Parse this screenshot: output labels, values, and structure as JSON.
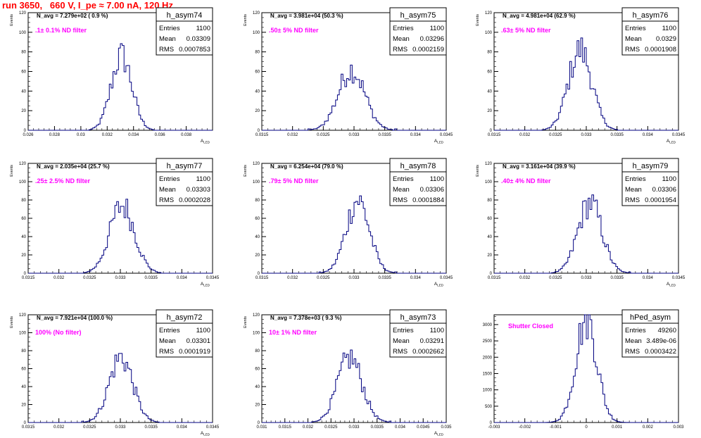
{
  "run_title": "run 3650,   660 V, I_pe ≈ 7.00 nA, 120 Hz",
  "colors": {
    "run_title": "#ff0000",
    "histogram": "#000080",
    "annotation": "#ff00ff",
    "frame": "#000000"
  },
  "chart_data": [
    {
      "type": "histogram",
      "name": "h_asym74",
      "stats": {
        "entries_label": "Entries",
        "entries": "1100",
        "mean_label": "Mean",
        "mean": "0.03309",
        "rms_label": "RMS",
        "rms": "0.0007853"
      },
      "navg_text": "N_avg = 7.279e+02 ( 0.9 %)",
      "annotation": ".1± 0.1% ND filter",
      "ylabel": "Events",
      "xlabel": "A_LED",
      "xlim": [
        0.026,
        0.04
      ],
      "ylim": [
        0,
        120
      ],
      "yticks": [
        "0",
        "20",
        "40",
        "60",
        "80",
        "100",
        "120"
      ],
      "xticks": [
        0.026,
        0.028,
        0.03,
        0.032,
        0.034,
        0.036,
        0.038
      ],
      "xtick_labels": [
        "0.026",
        "0.028",
        "0.03",
        "0.032",
        "0.034",
        "0.036",
        "0.038"
      ],
      "mean": 0.03309,
      "rms": 0.0007853,
      "peak": 76,
      "entries": 1100
    },
    {
      "type": "histogram",
      "name": "h_asym75",
      "stats": {
        "entries_label": "Entries",
        "entries": "1100",
        "mean_label": "Mean",
        "mean": "0.03296",
        "rms_label": "RMS",
        "rms": "0.0002159"
      },
      "navg_text": "N_avg = 3.981e+04 (50.3 %)",
      "annotation": ".50± 5% ND filter",
      "ylabel": "Events",
      "xlabel": "A_LED",
      "xlim": [
        0.0315,
        0.0345
      ],
      "ylim": [
        0,
        120
      ],
      "yticks": [
        "0",
        "20",
        "40",
        "60",
        "80",
        "100",
        "120"
      ],
      "xticks": [
        0.0315,
        0.032,
        0.0325,
        0.033,
        0.0335,
        0.034,
        0.0345
      ],
      "xtick_labels": [
        "0.0315",
        "0.032",
        "0.0325",
        "0.033",
        "0.0335",
        "0.034",
        "0.0345"
      ],
      "mean": 0.03296,
      "rms": 0.0002159,
      "peak": 62,
      "entries": 1100
    },
    {
      "type": "histogram",
      "name": "h_asym76",
      "stats": {
        "entries_label": "Entries",
        "entries": "1100",
        "mean_label": "Mean",
        "mean": "0.0329",
        "rms_label": "RMS",
        "rms": "0.0001908"
      },
      "navg_text": "N_avg = 4.981e+04 (62.9 %)",
      "annotation": ".63± 5% ND filter",
      "ylabel": "Events",
      "xlabel": "A_LED",
      "xlim": [
        0.0315,
        0.0345
      ],
      "ylim": [
        0,
        120
      ],
      "yticks": [
        "0",
        "20",
        "40",
        "60",
        "80",
        "100",
        "120"
      ],
      "xticks": [
        0.0315,
        0.032,
        0.0325,
        0.033,
        0.0335,
        0.034,
        0.0345
      ],
      "xtick_labels": [
        "0.0315",
        "0.032",
        "0.0325",
        "0.033",
        "0.0335",
        "0.034",
        "0.0345"
      ],
      "mean": 0.0329,
      "rms": 0.0001908,
      "peak": 82,
      "entries": 1100
    },
    {
      "type": "histogram",
      "name": "h_asym77",
      "stats": {
        "entries_label": "Entries",
        "entries": "1100",
        "mean_label": "Mean",
        "mean": "0.03303",
        "rms_label": "RMS",
        "rms": "0.0002028"
      },
      "navg_text": "N_avg = 2.035e+04 (25.7 %)",
      "annotation": ".25± 2.5% ND filter",
      "ylabel": "Events",
      "xlabel": "A_LED",
      "xlim": [
        0.0315,
        0.0345
      ],
      "ylim": [
        0,
        120
      ],
      "yticks": [
        "0",
        "20",
        "40",
        "60",
        "80",
        "100",
        "120"
      ],
      "xticks": [
        0.0315,
        0.032,
        0.0325,
        0.033,
        0.0335,
        0.034,
        0.0345
      ],
      "xtick_labels": [
        "0.0315",
        "0.032",
        "0.0325",
        "0.033",
        "0.0335",
        "0.034",
        "0.0345"
      ],
      "mean": 0.03303,
      "rms": 0.0002028,
      "peak": 74,
      "entries": 1100
    },
    {
      "type": "histogram",
      "name": "h_asym78",
      "stats": {
        "entries_label": "Entries",
        "entries": "1100",
        "mean_label": "Mean",
        "mean": "0.03306",
        "rms_label": "RMS",
        "rms": "0.0001884"
      },
      "navg_text": "N_avg = 6.254e+04 (79.0 %)",
      "annotation": ".79± 5% ND filter",
      "ylabel": "Events",
      "xlabel": "A_LED",
      "xlim": [
        0.0315,
        0.0345
      ],
      "ylim": [
        0,
        120
      ],
      "yticks": [
        "0",
        "20",
        "40",
        "60",
        "80",
        "100",
        "120"
      ],
      "xticks": [
        0.0315,
        0.032,
        0.0325,
        0.033,
        0.0335,
        0.034,
        0.0345
      ],
      "xtick_labels": [
        "0.0315",
        "0.032",
        "0.0325",
        "0.033",
        "0.0335",
        "0.034",
        "0.0345"
      ],
      "mean": 0.03306,
      "rms": 0.0001884,
      "peak": 80,
      "entries": 1100
    },
    {
      "type": "histogram",
      "name": "h_asym79",
      "stats": {
        "entries_label": "Entries",
        "entries": "1100",
        "mean_label": "Mean",
        "mean": "0.03306",
        "rms_label": "RMS",
        "rms": "0.0001954"
      },
      "navg_text": "N_avg = 3.161e+04 (39.9 %)",
      "annotation": ".40± 4% ND filter",
      "ylabel": "Events",
      "xlabel": "A_LED",
      "xlim": [
        0.0315,
        0.0345
      ],
      "ylim": [
        0,
        120
      ],
      "yticks": [
        "0",
        "20",
        "40",
        "60",
        "80",
        "100",
        "120"
      ],
      "xticks": [
        0.0315,
        0.032,
        0.0325,
        0.033,
        0.0335,
        0.034,
        0.0345
      ],
      "xtick_labels": [
        "0.0315",
        "0.032",
        "0.0325",
        "0.033",
        "0.0335",
        "0.034",
        "0.0345"
      ],
      "mean": 0.03306,
      "rms": 0.0001954,
      "peak": 77,
      "entries": 1100
    },
    {
      "type": "histogram",
      "name": "h_asym72",
      "stats": {
        "entries_label": "Entries",
        "entries": "1100",
        "mean_label": "Mean",
        "mean": "0.03301",
        "rms_label": "RMS",
        "rms": "0.0001919"
      },
      "navg_text": "N_avg = 7.921e+04 (100.0 %)",
      "annotation": "100% (No filter)",
      "ylabel": "Events",
      "xlabel": "A_LED",
      "xlim": [
        0.0315,
        0.0345
      ],
      "ylim": [
        0,
        120
      ],
      "yticks": [
        "0",
        "20",
        "40",
        "60",
        "80",
        "100",
        "120"
      ],
      "xticks": [
        0.0315,
        0.032,
        0.0325,
        0.033,
        0.0335,
        0.034,
        0.0345
      ],
      "xtick_labels": [
        "0.0315",
        "0.032",
        "0.0325",
        "0.033",
        "0.0335",
        "0.034",
        "0.0345"
      ],
      "mean": 0.03301,
      "rms": 0.0001919,
      "peak": 73,
      "entries": 1100
    },
    {
      "type": "histogram",
      "name": "h_asym73",
      "stats": {
        "entries_label": "Entries",
        "entries": "1100",
        "mean_label": "Mean",
        "mean": "0.03291",
        "rms_label": "RMS",
        "rms": "0.0002662"
      },
      "navg_text": "N_avg = 7.378e+03 ( 9.3 %)",
      "annotation": "10± 1% ND filter",
      "ylabel": "Events",
      "xlabel": "A_LED",
      "xlim": [
        0.031,
        0.035
      ],
      "ylim": [
        0,
        120
      ],
      "yticks": [
        "0",
        "20",
        "40",
        "60",
        "80",
        "100",
        "120"
      ],
      "xticks": [
        0.031,
        0.0315,
        0.032,
        0.0325,
        0.033,
        0.0335,
        0.034,
        0.0345,
        0.035
      ],
      "xtick_labels": [
        "0.031",
        "0.0315",
        "0.032",
        "0.0325",
        "0.033",
        "0.0335",
        "0.034",
        "0.0345",
        "0.035"
      ],
      "mean": 0.03291,
      "rms": 0.0002662,
      "peak": 72,
      "entries": 1100
    },
    {
      "type": "histogram",
      "name": "hPed_asym",
      "stats": {
        "entries_label": "Entries",
        "entries": "49260",
        "mean_label": "Mean",
        "mean": "3.489e-06",
        "rms_label": "RMS",
        "rms": "0.0003422"
      },
      "navg_text": "",
      "annotation": "Shutter Closed",
      "ylabel": "",
      "xlabel": "",
      "xlim": [
        -0.003,
        0.003
      ],
      "ylim": [
        0,
        3300
      ],
      "yticks": [
        "0",
        "500",
        "1000",
        "1500",
        "2000",
        "2500",
        "3000"
      ],
      "ytick_values": [
        0,
        500,
        1000,
        1500,
        2000,
        2500,
        3000
      ],
      "xticks": [
        -0.003,
        -0.002,
        -0.001,
        0,
        0.001,
        0.002,
        0.003
      ],
      "xtick_labels": [
        "-0.003",
        "-0.002",
        "-0.001",
        "0",
        "0.001",
        "0.002",
        "0.003"
      ],
      "mean": 3.5e-06,
      "rms": 0.0003422,
      "peak": 3200,
      "entries": 49260
    }
  ]
}
